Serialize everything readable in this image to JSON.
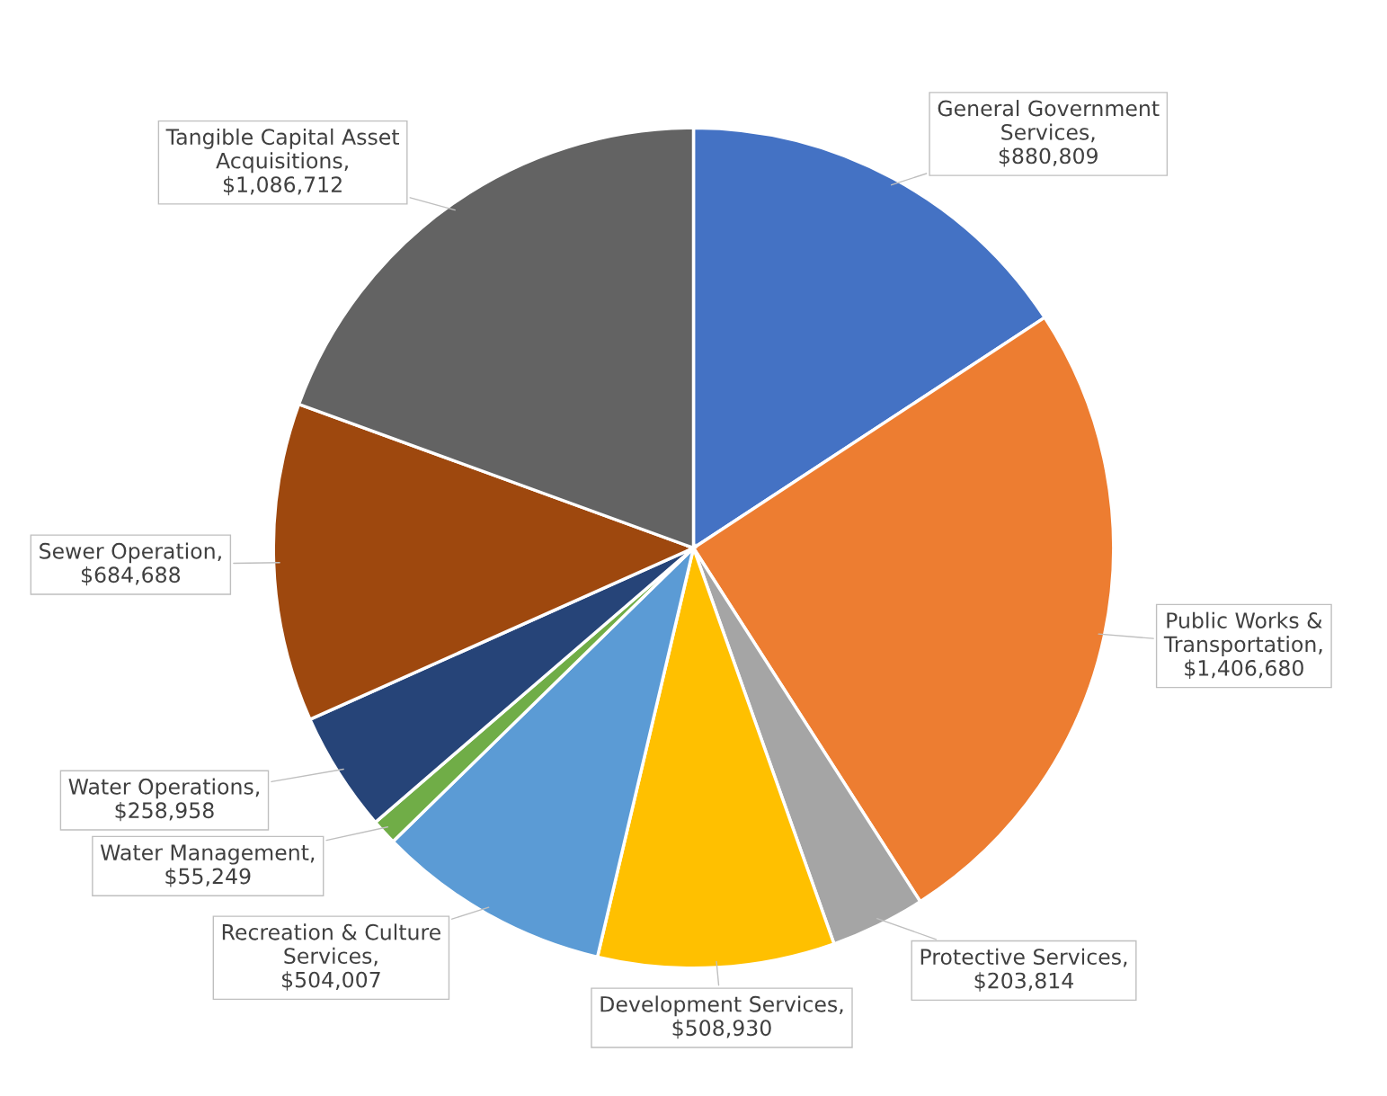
{
  "chart_data": {
    "type": "pie",
    "categories": [
      null,
      null,
      null,
      null,
      null,
      null,
      null,
      null,
      null
    ],
    "values": [
      880809,
      1406680,
      203814,
      508930,
      504007,
      55249,
      258958,
      684688,
      1086712
    ],
    "value_labels": [
      "General Government Services, $880,809",
      "Public Works & Transportation, $1,406,680",
      "Protective Services, $203,814",
      "Development Services, $508,930",
      "Recreation & Culture Services, $504,007",
      "Water Management, $55,249",
      "Water Operations, $258,958",
      "Sewer Operation, $684,688",
      "Tangible Capital Asset Acquisitions, $1,086,712"
    ],
    "colors": [
      "#4472c4",
      "#ed7d31",
      "#a5a5a5",
      "#ffc000",
      "#5b9bd5",
      "#70ad47",
      "#264478",
      "#9e480e",
      "#636363"
    ],
    "legend": false
  }
}
